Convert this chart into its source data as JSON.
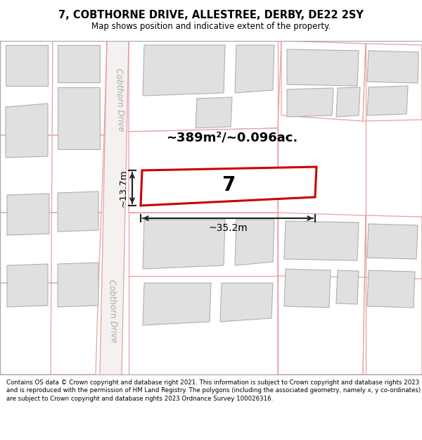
{
  "title": "7, COBTHORNE DRIVE, ALLESTREE, DERBY, DE22 2SY",
  "subtitle": "Map shows position and indicative extent of the property.",
  "footer": "Contains OS data © Crown copyright and database right 2021. This information is subject to Crown copyright and database rights 2023 and is reproduced with the permission of HM Land Registry. The polygons (including the associated geometry, namely x, y co-ordinates) are subject to Crown copyright and database rights 2023 Ordnance Survey 100026316.",
  "area_text": "~389m²/~0.096ac.",
  "number_text": "7",
  "dim_width": "~35.2m",
  "dim_height": "~13.7m",
  "road_label": "Cobthorn Drive",
  "highlight_color": "#cc0000",
  "highlight_fill": "#ffffff",
  "building_fill": "#e0e0e0",
  "building_edge": "#b0b0b0",
  "parcel_edge": "#e8a0a0",
  "road_fill": "#f8f4f4",
  "road_edge": "#d8b0b0",
  "dim_color": "#222222"
}
